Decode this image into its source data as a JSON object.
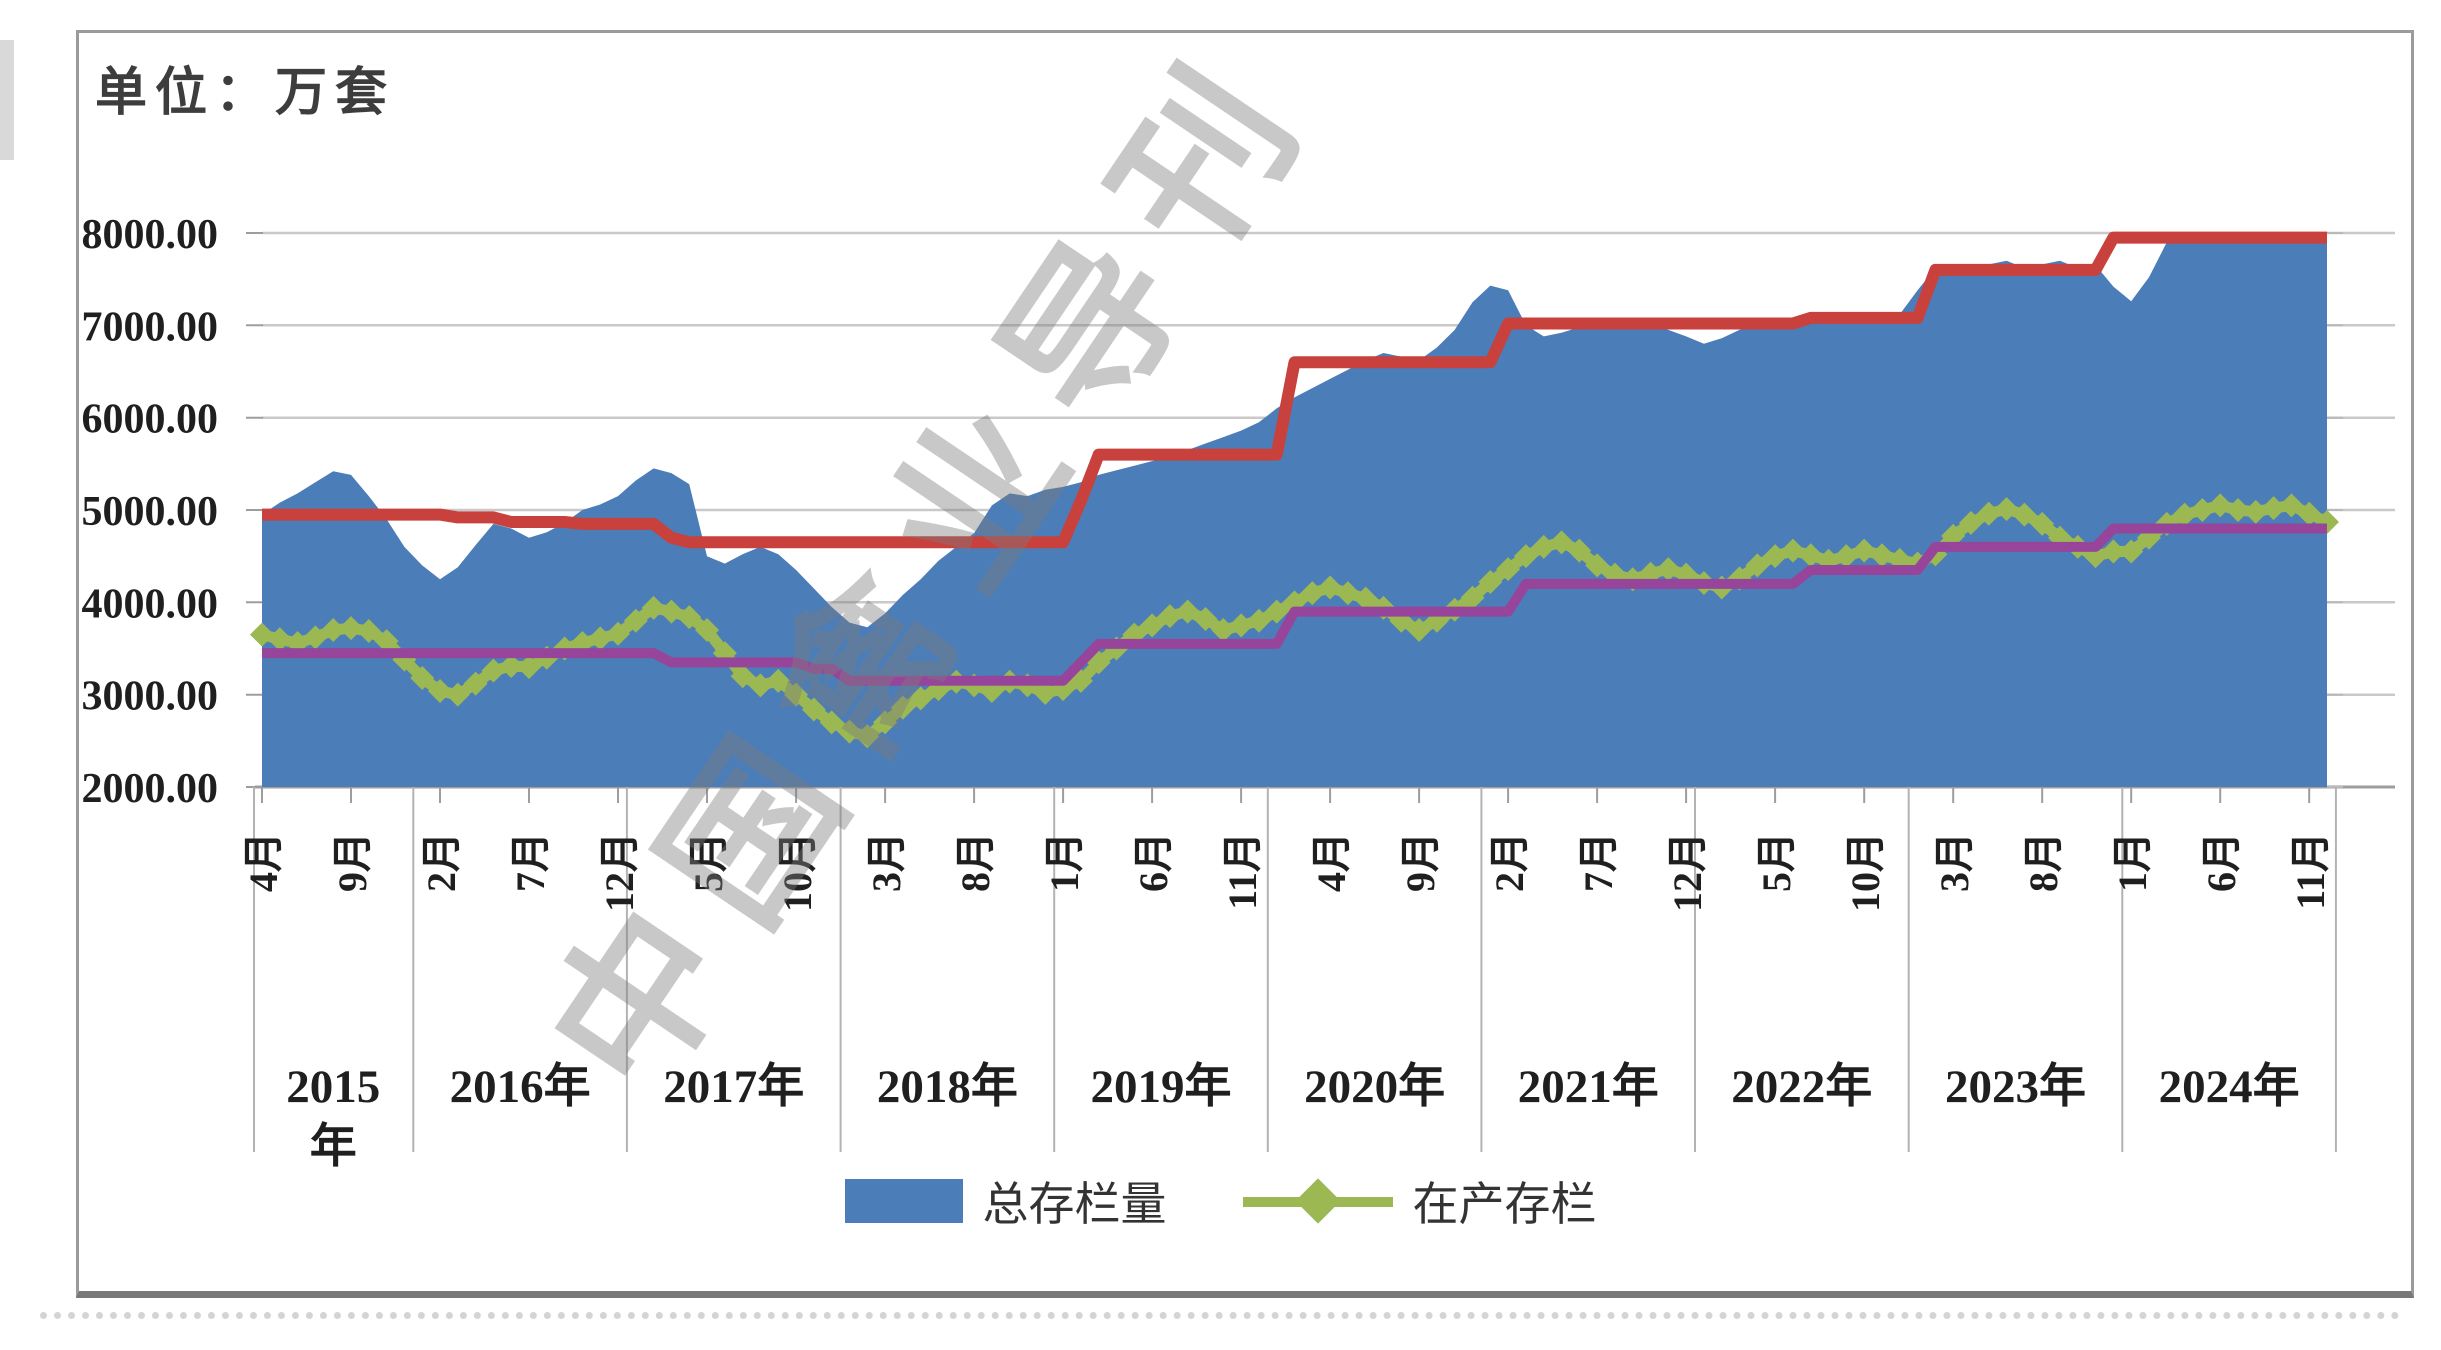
{
  "header": {
    "unit_label": "单位：万套"
  },
  "watermark": {
    "text": "中国禽业导刊"
  },
  "frame": {
    "border_color": "#9b9b9b",
    "bottom_border_color": "#787878"
  },
  "chart_data": {
    "type": "area",
    "title": "",
    "unit_label": "单位：万套",
    "x_start_month": "2015年4月",
    "x_end_month": "2024年12月",
    "grid": "horizontal",
    "gridline_color": "#c9c9c9",
    "axis_color": "#9d9d9d",
    "separator_color": "#b3b3b3",
    "y_axis": {
      "min": 2000,
      "max": 8000,
      "step": 1000,
      "tick_labels": [
        "8000.00",
        "7000.00",
        "6000.00",
        "5000.00",
        "4000.00",
        "3000.00",
        "2000.00"
      ]
    },
    "month_ticks": {
      "indices": [
        0,
        5,
        10,
        15,
        20,
        25,
        30,
        35,
        40,
        45,
        50,
        55,
        60,
        65,
        70,
        75,
        80,
        85,
        90,
        95,
        100,
        105,
        110,
        115
      ],
      "labels": [
        "4月",
        "9月",
        "2月",
        "7月",
        "12月",
        "5月",
        "10月",
        "3月",
        "8月",
        "1月",
        "6月",
        "11月",
        "4月",
        "9月",
        "2月",
        "7月",
        "12月",
        "5月",
        "10月",
        "3月",
        "8月",
        "1月",
        "6月",
        "11月"
      ]
    },
    "year_bands": [
      {
        "label": "2015年",
        "months": 9,
        "wrap_label": true
      },
      {
        "label": "2016年",
        "months": 12,
        "wrap_label": false
      },
      {
        "label": "2017年",
        "months": 12,
        "wrap_label": false
      },
      {
        "label": "2018年",
        "months": 12,
        "wrap_label": false
      },
      {
        "label": "2019年",
        "months": 12,
        "wrap_label": false
      },
      {
        "label": "2020年",
        "months": 12,
        "wrap_label": false
      },
      {
        "label": "2021年",
        "months": 12,
        "wrap_label": false
      },
      {
        "label": "2022年",
        "months": 12,
        "wrap_label": false
      },
      {
        "label": "2023年",
        "months": 12,
        "wrap_label": false
      },
      {
        "label": "2024年",
        "months": 12,
        "wrap_label": false
      }
    ],
    "legend": {
      "position": "bottom",
      "items": [
        {
          "label": "总存栏量",
          "swatch": "rect"
        },
        {
          "label": "在产存栏",
          "swatch": "line-diamond"
        }
      ]
    },
    "series": [
      {
        "key": "total_inventory",
        "label": "总存栏量",
        "type": "area",
        "color": "#4b7db9",
        "values": [
          4950,
          5080,
          5180,
          5300,
          5420,
          5380,
          5150,
          4900,
          4600,
          4400,
          4250,
          4380,
          4620,
          4850,
          4800,
          4700,
          4760,
          4860,
          5000,
          5060,
          5150,
          5320,
          5450,
          5400,
          5280,
          4500,
          4420,
          4520,
          4600,
          4520,
          4350,
          4150,
          3950,
          3780,
          3730,
          3880,
          4080,
          4250,
          4450,
          4600,
          4750,
          5050,
          5180,
          5150,
          5220,
          5250,
          5300,
          5380,
          5430,
          5480,
          5530,
          5580,
          5650,
          5720,
          5790,
          5860,
          5950,
          6100,
          6220,
          6320,
          6420,
          6520,
          6620,
          6700,
          6660,
          6620,
          6760,
          6950,
          7250,
          7430,
          7380,
          7000,
          6880,
          6920,
          6980,
          7040,
          7060,
          7040,
          7000,
          6950,
          6880,
          6800,
          6860,
          6950,
          7000,
          7050,
          7010,
          7060,
          7070,
          7080,
          7050,
          7070,
          7120,
          7380,
          7620,
          7660,
          7600,
          7660,
          7700,
          7620,
          7660,
          7700,
          7620,
          7650,
          7420,
          7260,
          7520,
          7900,
          7950,
          7950,
          7950,
          7950,
          7950,
          7950,
          7950,
          7950,
          7950
        ]
      },
      {
        "key": "in_production_inventory",
        "label": "在产存栏",
        "type": "line-diamond",
        "color": "#9cb852",
        "values": [
          3650,
          3600,
          3560,
          3620,
          3700,
          3720,
          3690,
          3580,
          3380,
          3180,
          3040,
          3000,
          3120,
          3260,
          3310,
          3300,
          3400,
          3500,
          3560,
          3610,
          3660,
          3800,
          3940,
          3900,
          3840,
          3700,
          3450,
          3200,
          3100,
          3150,
          3000,
          2840,
          2700,
          2600,
          2550,
          2700,
          2860,
          2960,
          3060,
          3140,
          3100,
          3040,
          3140,
          3100,
          3020,
          3060,
          3150,
          3350,
          3500,
          3650,
          3750,
          3850,
          3900,
          3820,
          3700,
          3750,
          3800,
          3900,
          4000,
          4100,
          4160,
          4100,
          4040,
          3940,
          3800,
          3700,
          3800,
          3920,
          4050,
          4220,
          4360,
          4500,
          4600,
          4650,
          4560,
          4400,
          4300,
          4250,
          4310,
          4360,
          4300,
          4210,
          4160,
          4260,
          4400,
          4500,
          4560,
          4510,
          4450,
          4500,
          4560,
          4510,
          4460,
          4420,
          4520,
          4720,
          4860,
          4960,
          5010,
          4950,
          4850,
          4700,
          4600,
          4500,
          4550,
          4550,
          4700,
          4850,
          4950,
          5000,
          5050,
          5000,
          4980,
          5020,
          5050,
          4960,
          4870
        ]
      },
      {
        "key": "upper_step_reference",
        "label": "",
        "type": "step-line",
        "color": "#c8413d",
        "values": [
          4950,
          4950,
          4950,
          4950,
          4950,
          4950,
          4950,
          4950,
          4950,
          4950,
          4950,
          4920,
          4920,
          4920,
          4870,
          4870,
          4870,
          4870,
          4850,
          4850,
          4850,
          4850,
          4850,
          4700,
          4650,
          4650,
          4650,
          4650,
          4650,
          4650,
          4650,
          4650,
          4650,
          4650,
          4650,
          4650,
          4650,
          4650,
          4650,
          4650,
          4650,
          4650,
          4650,
          4650,
          4650,
          4650,
          5100,
          5600,
          5600,
          5600,
          5600,
          5600,
          5600,
          5600,
          5600,
          5600,
          5600,
          5600,
          6600,
          6600,
          6600,
          6600,
          6600,
          6600,
          6600,
          6600,
          6600,
          6600,
          6600,
          6600,
          7020,
          7020,
          7020,
          7020,
          7020,
          7020,
          7020,
          7020,
          7020,
          7020,
          7020,
          7020,
          7020,
          7020,
          7020,
          7020,
          7020,
          7080,
          7080,
          7080,
          7080,
          7080,
          7080,
          7080,
          7600,
          7600,
          7600,
          7600,
          7600,
          7600,
          7600,
          7600,
          7600,
          7600,
          7950,
          7950,
          7950,
          7950,
          7950,
          7950,
          7950,
          7950,
          7950,
          7950,
          7950,
          7950,
          7950
        ]
      },
      {
        "key": "lower_step_reference",
        "label": "",
        "type": "step-line",
        "color": "#96459b",
        "values": [
          3450,
          3450,
          3450,
          3450,
          3450,
          3450,
          3450,
          3450,
          3450,
          3450,
          3450,
          3450,
          3450,
          3450,
          3450,
          3450,
          3450,
          3450,
          3450,
          3450,
          3450,
          3450,
          3450,
          3350,
          3350,
          3350,
          3350,
          3350,
          3350,
          3350,
          3350,
          3280,
          3280,
          3150,
          3150,
          3150,
          3150,
          3150,
          3150,
          3150,
          3150,
          3150,
          3150,
          3150,
          3150,
          3150,
          3350,
          3550,
          3550,
          3550,
          3550,
          3550,
          3550,
          3550,
          3550,
          3550,
          3550,
          3550,
          3900,
          3900,
          3900,
          3900,
          3900,
          3900,
          3900,
          3900,
          3900,
          3900,
          3900,
          3900,
          3900,
          4200,
          4200,
          4200,
          4200,
          4200,
          4200,
          4200,
          4200,
          4200,
          4200,
          4200,
          4200,
          4200,
          4200,
          4200,
          4200,
          4350,
          4350,
          4350,
          4350,
          4350,
          4350,
          4350,
          4600,
          4600,
          4600,
          4600,
          4600,
          4600,
          4600,
          4600,
          4600,
          4600,
          4800,
          4800,
          4800,
          4800,
          4800,
          4800,
          4800,
          4800,
          4800,
          4800,
          4800,
          4800,
          4800
        ]
      }
    ]
  }
}
